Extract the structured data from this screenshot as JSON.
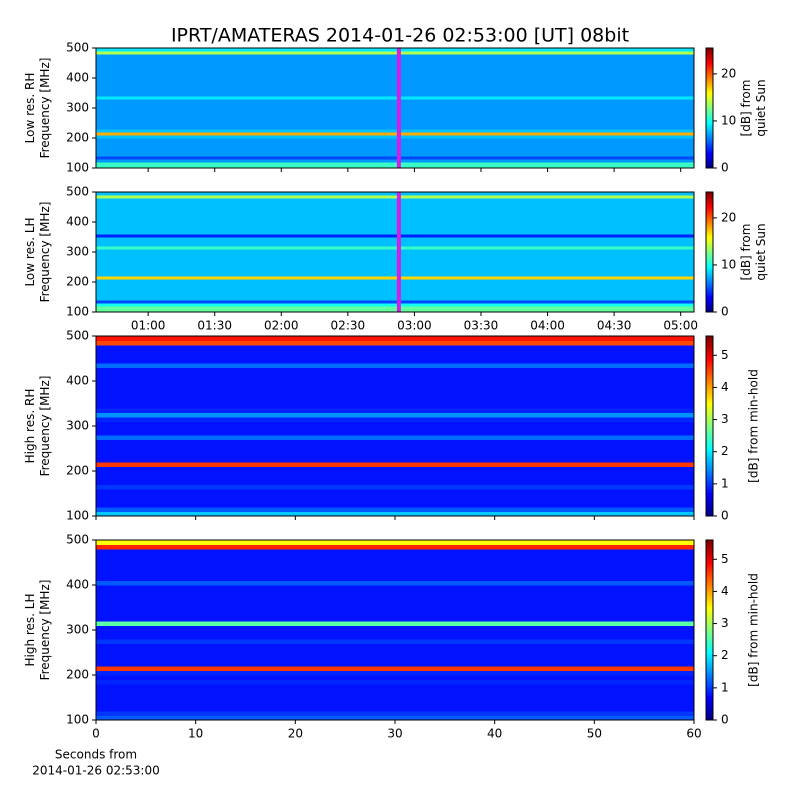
{
  "chart_data": [
    {
      "type": "spectrogram",
      "title": "IPRT/AMATERAS 2014-01-26 02:53:00 [UT]   08bit",
      "ylabel": [
        "Low res. RH",
        "Frequency [MHz]"
      ],
      "colorbar_label": [
        "[dB] from",
        "quiet Sun"
      ],
      "colormap": "jet",
      "clim": [
        0,
        25.5
      ],
      "cticks": [
        0,
        10,
        20
      ],
      "ylim": [
        100,
        500
      ],
      "yticks": [
        100,
        200,
        300,
        400,
        500
      ],
      "ybins": [
        100,
        110,
        120,
        130,
        140,
        150,
        160,
        170,
        180,
        190,
        200,
        210,
        220,
        230,
        240,
        250,
        260,
        270,
        280,
        290,
        300,
        310,
        320,
        330,
        340,
        350,
        360,
        370,
        380,
        390,
        400,
        410,
        420,
        430,
        440,
        450,
        460,
        470,
        480,
        490,
        500
      ],
      "values": [
        11,
        11,
        7,
        5,
        7,
        7,
        7,
        7,
        7,
        7,
        8,
        18,
        8,
        7,
        7,
        7,
        7,
        7,
        7,
        7,
        7,
        7,
        7,
        9,
        7,
        7,
        7,
        7,
        7,
        7,
        7,
        7,
        7,
        7,
        7,
        7,
        7,
        7,
        14,
        9
      ],
      "vline": {
        "x": 173,
        "color": "#d21ee6"
      }
    },
    {
      "type": "spectrogram",
      "ylabel": [
        "Low res. LH",
        "Frequency [MHz]"
      ],
      "colorbar_label": [
        "[dB] from",
        "quiet Sun"
      ],
      "colormap": "jet",
      "clim": [
        0,
        25.5
      ],
      "cticks": [
        0,
        10,
        20
      ],
      "xlim": [
        36.5,
        306
      ],
      "xticks": [
        {
          "value": 60,
          "label": "01:00"
        },
        {
          "value": 90,
          "label": "01:30"
        },
        {
          "value": 120,
          "label": "02:00"
        },
        {
          "value": 150,
          "label": "02:30"
        },
        {
          "value": 180,
          "label": "03:00"
        },
        {
          "value": 210,
          "label": "03:30"
        },
        {
          "value": 240,
          "label": "04:00"
        },
        {
          "value": 270,
          "label": "04:30"
        },
        {
          "value": 300,
          "label": "05:00"
        }
      ],
      "ylim": [
        100,
        500
      ],
      "yticks": [
        100,
        200,
        300,
        400,
        500
      ],
      "ybins": [
        100,
        110,
        120,
        130,
        140,
        150,
        160,
        170,
        180,
        190,
        200,
        210,
        220,
        230,
        240,
        250,
        260,
        270,
        280,
        290,
        300,
        310,
        320,
        330,
        340,
        350,
        360,
        370,
        380,
        390,
        400,
        410,
        420,
        430,
        440,
        450,
        460,
        470,
        480,
        490,
        500
      ],
      "values": [
        12,
        12,
        10,
        5,
        8,
        8,
        8,
        8,
        8,
        8,
        8,
        17,
        8,
        8,
        8,
        8,
        8,
        8,
        8,
        8,
        8,
        11,
        8,
        8,
        8,
        4,
        8,
        8,
        8,
        8,
        8,
        8,
        8,
        8,
        8,
        8,
        8,
        8,
        14,
        8
      ],
      "vline": {
        "x": 173,
        "color": "#d21ee6"
      }
    },
    {
      "type": "spectrogram",
      "ylabel": [
        "High res. RH",
        "Frequency [MHz]"
      ],
      "colorbar_label": [
        "[dB] from min-hold"
      ],
      "colormap": "jet",
      "clim": [
        0,
        5.6
      ],
      "cticks": [
        0,
        1,
        2,
        3,
        4,
        5
      ],
      "ylim": [
        100,
        500
      ],
      "yticks": [
        100,
        200,
        300,
        400,
        500
      ],
      "ybins": [
        100,
        110,
        120,
        130,
        140,
        150,
        160,
        170,
        180,
        190,
        200,
        210,
        220,
        230,
        240,
        250,
        260,
        270,
        280,
        290,
        300,
        310,
        320,
        330,
        340,
        350,
        360,
        370,
        380,
        390,
        400,
        410,
        420,
        430,
        440,
        450,
        460,
        470,
        480,
        490,
        500
      ],
      "values": [
        1.8,
        1.2,
        0.8,
        0.8,
        0.8,
        0.8,
        1.0,
        0.8,
        0.8,
        0.8,
        0.8,
        4.6,
        0.8,
        0.8,
        0.8,
        0.8,
        0.8,
        1.3,
        0.8,
        0.8,
        0.8,
        0.9,
        1.5,
        0.9,
        0.8,
        0.8,
        0.8,
        0.8,
        0.8,
        0.8,
        0.8,
        0.8,
        0.8,
        1.3,
        0.8,
        0.8,
        0.8,
        0.8,
        4.5,
        4.8
      ]
    },
    {
      "type": "spectrogram",
      "ylabel": [
        "High res. LH",
        "Frequency [MHz]"
      ],
      "colorbar_label": [
        "[dB] from min-hold"
      ],
      "colormap": "jet",
      "clim": [
        0,
        5.6
      ],
      "cticks": [
        0,
        1,
        2,
        3,
        4,
        5
      ],
      "xlim": [
        0,
        60
      ],
      "xticks": [
        0,
        10,
        20,
        30,
        40,
        50,
        60
      ],
      "xlabel": [
        "Seconds from",
        "2014-01-26 02:53:00"
      ],
      "ylim": [
        100,
        500
      ],
      "yticks": [
        100,
        200,
        300,
        400,
        500
      ],
      "ybins": [
        100,
        110,
        120,
        130,
        140,
        150,
        160,
        170,
        180,
        190,
        200,
        210,
        220,
        230,
        240,
        250,
        260,
        270,
        280,
        290,
        300,
        310,
        320,
        330,
        340,
        350,
        360,
        370,
        380,
        390,
        400,
        410,
        420,
        430,
        440,
        450,
        460,
        470,
        480,
        490,
        500
      ],
      "values": [
        1.2,
        1.0,
        0.8,
        0.8,
        0.8,
        0.8,
        0.8,
        0.8,
        0.9,
        0.8,
        0.9,
        4.6,
        0.8,
        0.8,
        0.8,
        0.8,
        0.8,
        1.0,
        0.8,
        0.8,
        0.8,
        2.6,
        0.8,
        0.8,
        0.8,
        0.8,
        0.8,
        0.8,
        0.8,
        0.8,
        1.2,
        0.8,
        0.8,
        0.8,
        0.8,
        0.8,
        0.8,
        0.8,
        4.7,
        3.5
      ]
    }
  ]
}
